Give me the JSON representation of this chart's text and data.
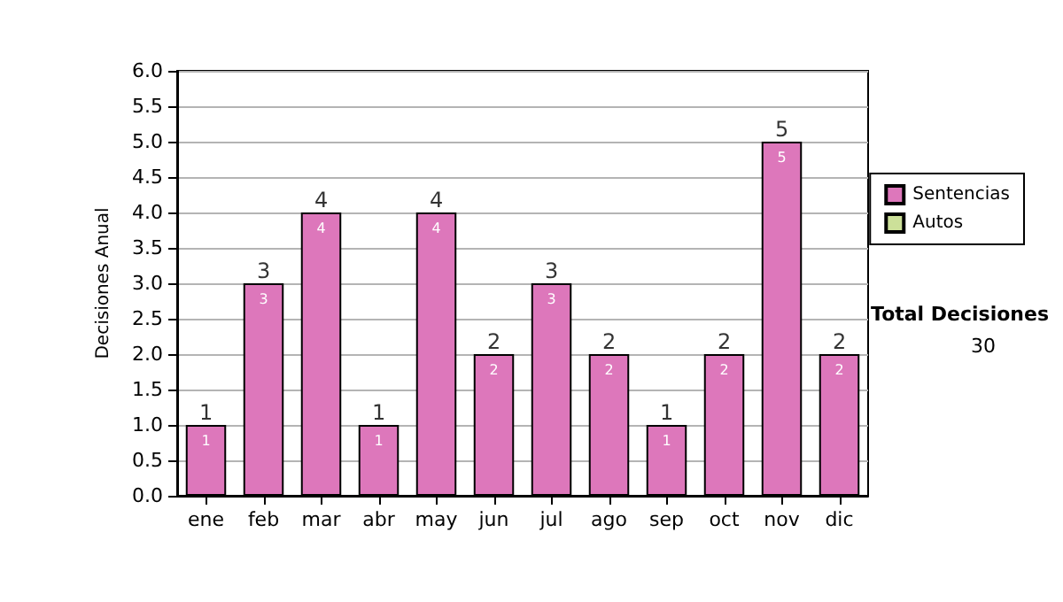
{
  "chart_data": {
    "type": "bar",
    "ylabel": "Decisiones Anual",
    "categories": [
      "ene",
      "feb",
      "mar",
      "abr",
      "may",
      "jun",
      "jul",
      "ago",
      "sep",
      "oct",
      "nov",
      "dic"
    ],
    "series": [
      {
        "name": "Sentencias",
        "color": "#dd77bb",
        "values": [
          1,
          3,
          4,
          1,
          4,
          2,
          3,
          2,
          1,
          2,
          5,
          2
        ],
        "value_labels": [
          "1",
          "3",
          "4",
          "1",
          "4",
          "2",
          "3",
          "2",
          "1",
          "2",
          "5",
          "2"
        ]
      },
      {
        "name": "Autos",
        "color": "#cce099",
        "values": [
          0,
          0,
          0,
          0,
          0,
          0,
          0,
          0,
          0,
          0,
          0,
          0
        ]
      }
    ],
    "stacked": true,
    "totals": [
      "1",
      "3",
      "4",
      "1",
      "4",
      "2",
      "3",
      "2",
      "1",
      "2",
      "5",
      "2"
    ],
    "ylim": [
      0,
      6
    ],
    "yticks": [
      {
        "value": 0,
        "label": "0.0"
      },
      {
        "value": 0.5,
        "label": "0.5"
      },
      {
        "value": 1,
        "label": "1.0"
      },
      {
        "value": 1.5,
        "label": "1.5"
      },
      {
        "value": 2,
        "label": "2.0"
      },
      {
        "value": 2.5,
        "label": "2.5"
      },
      {
        "value": 3,
        "label": "3.0"
      },
      {
        "value": 3.5,
        "label": "3.5"
      },
      {
        "value": 4,
        "label": "4.0"
      },
      {
        "value": 4.5,
        "label": "4.5"
      },
      {
        "value": 5,
        "label": "5.0"
      },
      {
        "value": 5.5,
        "label": "5.5"
      },
      {
        "value": 6,
        "label": "6.0"
      }
    ],
    "grid": "y",
    "legend": "right",
    "annotations": [
      "Total Decisiones",
      "30"
    ]
  }
}
